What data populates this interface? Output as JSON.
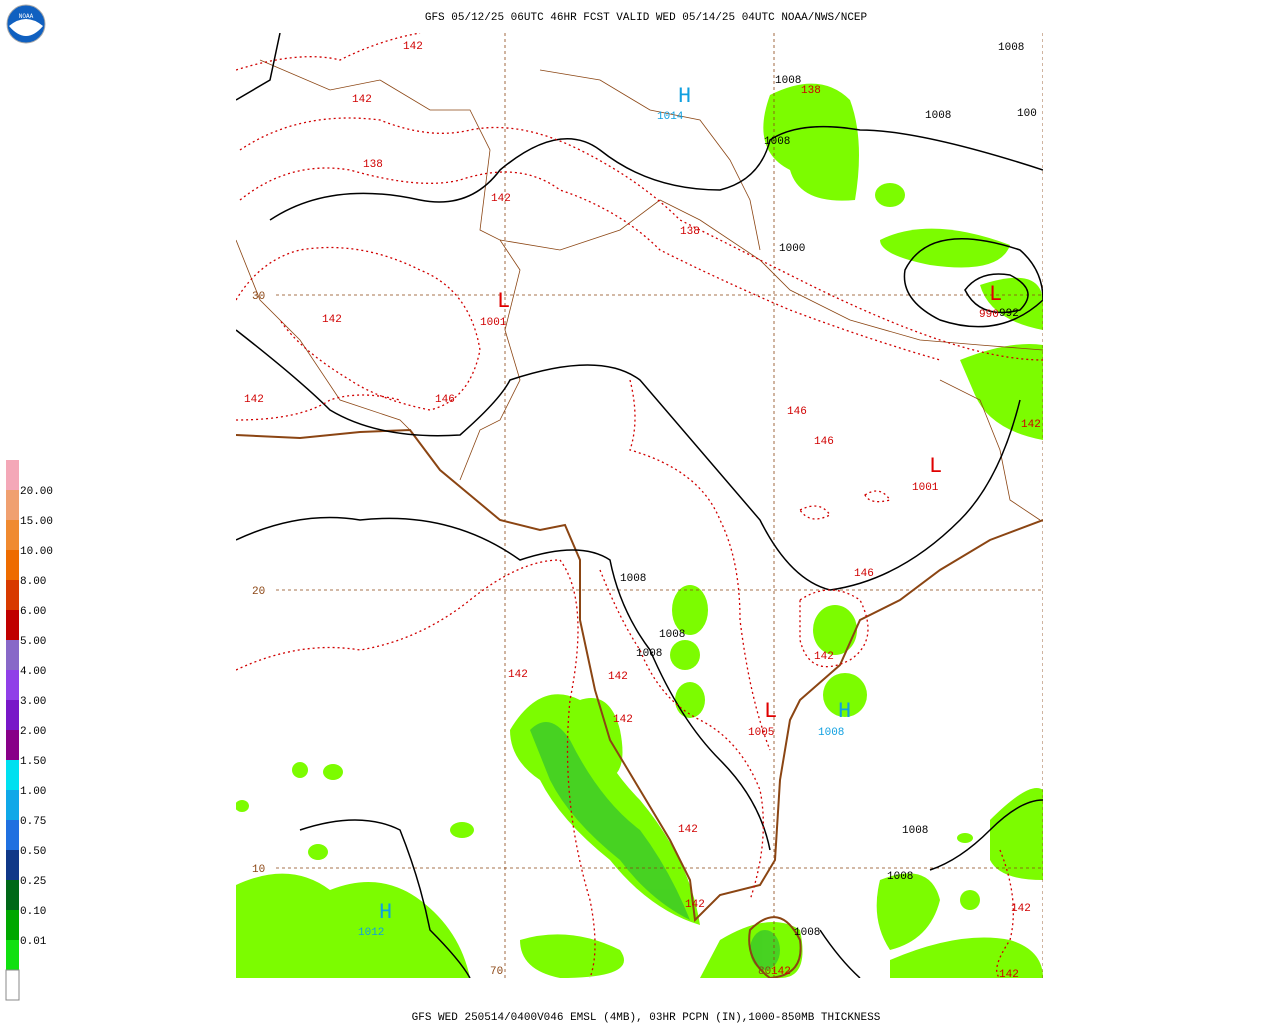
{
  "header": {
    "title": "GFS 05/12/25 06UTC 46HR FCST VALID WED 05/14/25 04UTC NOAA/NWS/NCEP",
    "logo": "NOAA"
  },
  "footer": {
    "caption": "GFS WED 250514/0400V046 EMSL (4MB), 03HR PCPN (IN),1000-850MB THICKNESS"
  },
  "legend": {
    "labels": [
      "20.00",
      "15.00",
      "10.00",
      "8.00",
      "6.00",
      "5.00",
      "4.00",
      "3.00",
      "2.00",
      "1.50",
      "1.00",
      "0.75",
      "0.50",
      "0.25",
      "0.10",
      "0.01"
    ]
  },
  "map": {
    "lat_labels": [
      "30",
      "20",
      "10"
    ],
    "lon_labels": [
      "70",
      "80"
    ],
    "centers": [
      {
        "type": "H",
        "pressure": "1014"
      },
      {
        "type": "L",
        "pressure": "1001"
      },
      {
        "type": "L",
        "pressure": "990"
      },
      {
        "type": "L",
        "pressure": "1001"
      },
      {
        "type": "L",
        "pressure": "1005"
      },
      {
        "type": "H",
        "pressure": "1008"
      },
      {
        "type": "H",
        "pressure": "1012"
      }
    ],
    "isobar_labels": [
      "1008",
      "1008",
      "1008",
      "100",
      "1008",
      "1000",
      "992",
      "1008",
      "1008",
      "1008",
      "1008",
      "1008",
      "1008"
    ],
    "thickness_labels": [
      "142",
      "142",
      "138",
      "138",
      "142",
      "138",
      "142",
      "142",
      "146",
      "146",
      "146",
      "142",
      "146",
      "142",
      "142",
      "142",
      "142",
      "142",
      "142",
      "142",
      "142",
      "142"
    ]
  }
}
